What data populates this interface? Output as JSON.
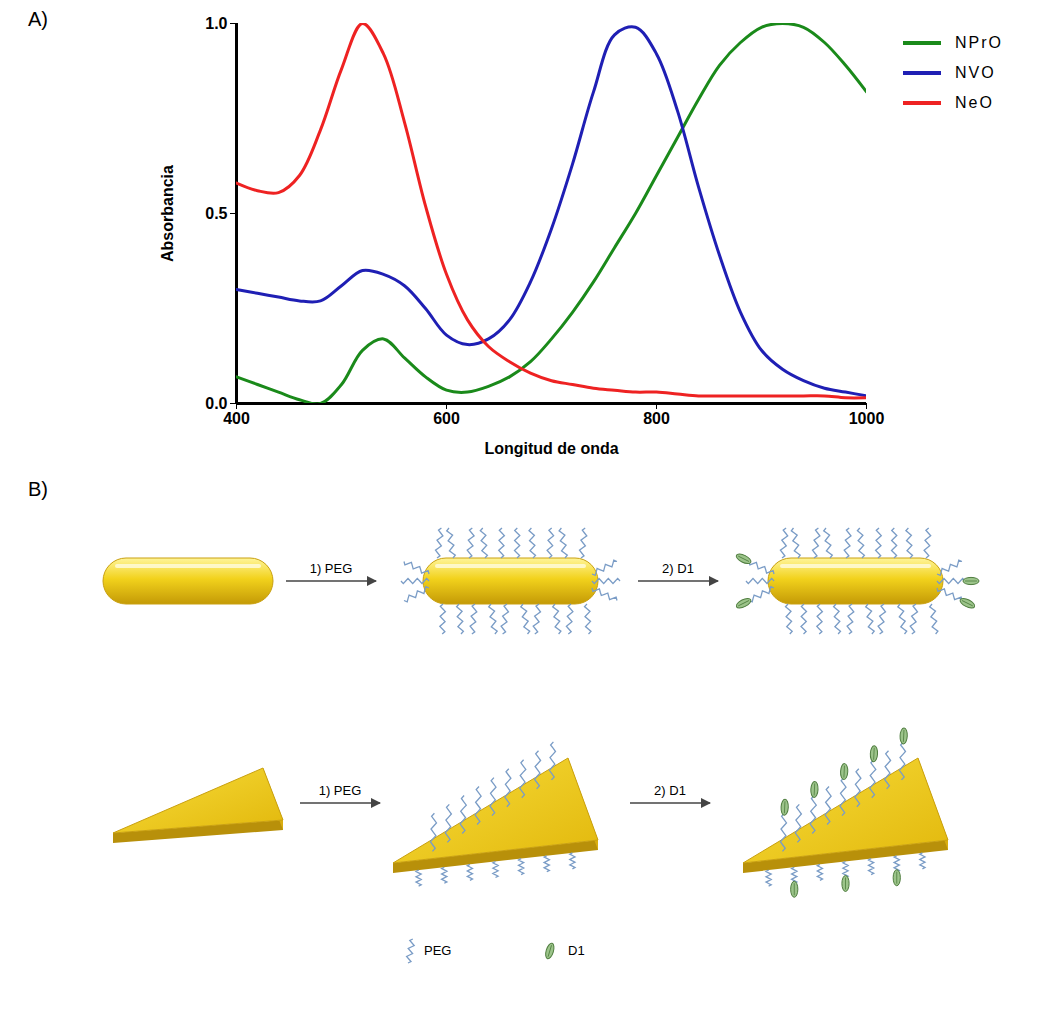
{
  "chart_data": {
    "type": "line",
    "panel_label": "A)",
    "x_label": "Longitud de onda",
    "y_label": "Absorbancia",
    "x": [
      400,
      420,
      440,
      460,
      480,
      500,
      520,
      540,
      560,
      580,
      600,
      620,
      640,
      660,
      680,
      700,
      720,
      740,
      760,
      780,
      800,
      820,
      840,
      860,
      880,
      900,
      920,
      940,
      960,
      980,
      1000
    ],
    "series": [
      {
        "name": "NPrO",
        "color": "#1a8a1a",
        "values": [
          0.07,
          0.05,
          0.03,
          0.01,
          0.0,
          0.05,
          0.14,
          0.17,
          0.12,
          0.07,
          0.035,
          0.03,
          0.045,
          0.07,
          0.11,
          0.17,
          0.24,
          0.32,
          0.41,
          0.5,
          0.6,
          0.7,
          0.8,
          0.89,
          0.95,
          0.99,
          1.0,
          0.99,
          0.95,
          0.89,
          0.82
        ]
      },
      {
        "name": "NVO",
        "color": "#1f1fb4",
        "values": [
          0.3,
          0.29,
          0.28,
          0.27,
          0.27,
          0.31,
          0.35,
          0.34,
          0.31,
          0.25,
          0.18,
          0.155,
          0.17,
          0.22,
          0.32,
          0.46,
          0.63,
          0.82,
          0.97,
          0.99,
          0.92,
          0.77,
          0.57,
          0.39,
          0.24,
          0.14,
          0.09,
          0.06,
          0.04,
          0.03,
          0.02
        ]
      },
      {
        "name": "NeO",
        "color": "#ee2222",
        "values": [
          0.58,
          0.56,
          0.555,
          0.6,
          0.72,
          0.88,
          1.0,
          0.92,
          0.74,
          0.52,
          0.34,
          0.22,
          0.15,
          0.11,
          0.08,
          0.06,
          0.05,
          0.04,
          0.035,
          0.03,
          0.03,
          0.025,
          0.02,
          0.02,
          0.02,
          0.02,
          0.02,
          0.02,
          0.02,
          0.015,
          0.015
        ]
      }
    ],
    "xlim": [
      400,
      1000
    ],
    "xticks": [
      400,
      600,
      800,
      1000
    ],
    "ylim": [
      0,
      1
    ],
    "yticks": [
      {
        "value": 0,
        "label": "0.0"
      },
      {
        "value": 0.5,
        "label": "0.5"
      },
      {
        "value": 1,
        "label": "1.0"
      }
    ],
    "grid": false,
    "legend": "right"
  },
  "diagram": {
    "panel_label": "B)",
    "rows": [
      {
        "steps": [
          "1) PEG",
          "2) D1"
        ]
      },
      {
        "steps": [
          "1) PEG",
          "2) D1"
        ]
      }
    ],
    "legend": [
      "PEG",
      "D1"
    ]
  }
}
